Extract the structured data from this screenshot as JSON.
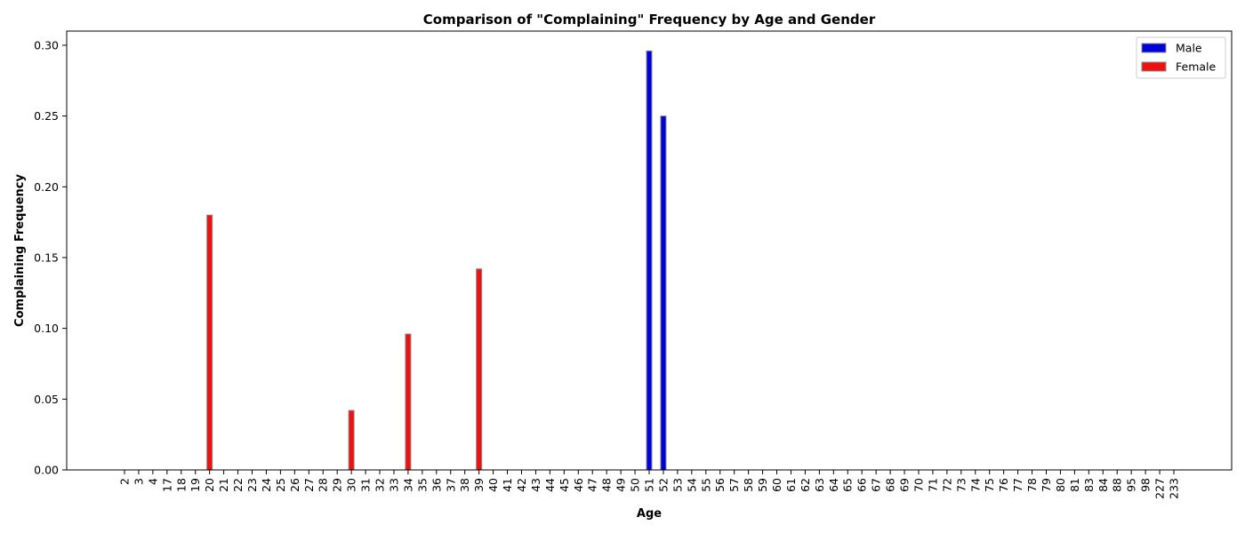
{
  "chart_data": {
    "type": "bar",
    "title": "Comparison of \"Complaining\" Frequency by Age and Gender",
    "xlabel": "Age",
    "ylabel": "Complaining Frequency",
    "ylim": [
      0,
      0.31
    ],
    "yticks": [
      0.0,
      0.05,
      0.1,
      0.15,
      0.2,
      0.25,
      0.3
    ],
    "ytick_labels": [
      "0.00",
      "0.05",
      "0.10",
      "0.15",
      "0.20",
      "0.25",
      "0.30"
    ],
    "grid": false,
    "legend_position": "top-right",
    "categories": [
      "2",
      "3",
      "4",
      "17",
      "18",
      "19",
      "20",
      "21",
      "22",
      "23",
      "24",
      "25",
      "26",
      "27",
      "28",
      "29",
      "30",
      "31",
      "32",
      "33",
      "34",
      "35",
      "36",
      "37",
      "38",
      "39",
      "40",
      "41",
      "42",
      "43",
      "44",
      "45",
      "46",
      "47",
      "48",
      "49",
      "50",
      "51",
      "52",
      "53",
      "54",
      "55",
      "56",
      "57",
      "58",
      "59",
      "60",
      "61",
      "62",
      "63",
      "64",
      "65",
      "66",
      "67",
      "68",
      "69",
      "70",
      "71",
      "72",
      "73",
      "74",
      "75",
      "76",
      "77",
      "78",
      "79",
      "80",
      "81",
      "83",
      "84",
      "88",
      "95",
      "98",
      "227",
      "233"
    ],
    "series": [
      {
        "name": "Male",
        "color": "#0000dd",
        "values": [
          0,
          0,
          0,
          0,
          0,
          0,
          0,
          0,
          0,
          0,
          0,
          0,
          0,
          0,
          0,
          0,
          0,
          0,
          0,
          0,
          0,
          0,
          0,
          0,
          0,
          0,
          0,
          0,
          0,
          0,
          0,
          0,
          0,
          0,
          0,
          0,
          0,
          0.296,
          0.25,
          0,
          0,
          0,
          0,
          0,
          0,
          0,
          0,
          0,
          0,
          0,
          0,
          0,
          0,
          0,
          0,
          0,
          0,
          0,
          0,
          0,
          0,
          0,
          0,
          0,
          0,
          0,
          0,
          0,
          0,
          0,
          0,
          0,
          0,
          0,
          0
        ]
      },
      {
        "name": "Female",
        "color": "#ee1111",
        "values": [
          0,
          0,
          0,
          0,
          0,
          0,
          0.18,
          0,
          0,
          0,
          0,
          0,
          0,
          0,
          0,
          0,
          0.042,
          0,
          0,
          0,
          0.096,
          0,
          0,
          0,
          0,
          0.142,
          0,
          0,
          0,
          0,
          0,
          0,
          0,
          0,
          0,
          0,
          0,
          0,
          0,
          0,
          0,
          0,
          0,
          0,
          0,
          0,
          0,
          0,
          0,
          0,
          0,
          0,
          0,
          0,
          0,
          0,
          0,
          0,
          0,
          0,
          0,
          0,
          0,
          0,
          0,
          0,
          0,
          0,
          0,
          0,
          0,
          0,
          0,
          0,
          0
        ]
      }
    ]
  }
}
